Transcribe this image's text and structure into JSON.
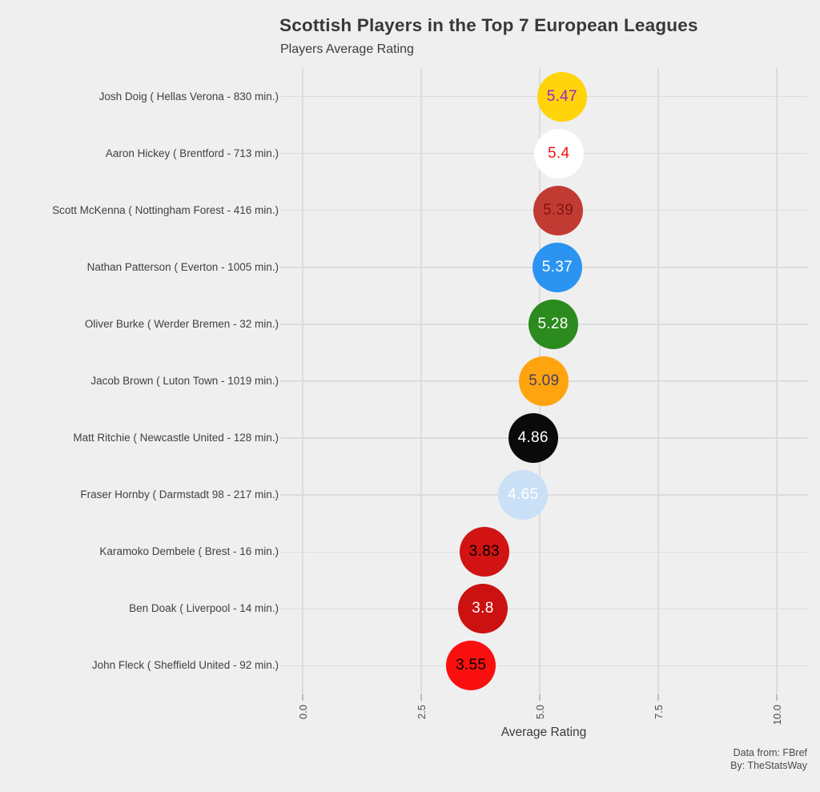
{
  "chart_data": {
    "type": "scatter",
    "title": "Scottish Players in the Top 7 European Leagues",
    "subtitle": "Players Average Rating",
    "xlabel": "Average Rating",
    "xlim": [
      0,
      10
    ],
    "x_ticks": [
      0,
      2.5,
      5,
      7.5,
      10
    ],
    "x_tick_labels": [
      "0.0",
      "2.5",
      "5.0",
      "7.5",
      "10.0"
    ],
    "grid": true,
    "legend": "none",
    "players": [
      {
        "label": "Josh Doig  ( Hellas Verona - 830 min.)",
        "name": "Josh Doig",
        "team": "Hellas Verona",
        "minutes": 830,
        "rating": 5.47,
        "value_label": "5.47",
        "dot_color": "#ffd40a",
        "text_color": "#a020cc"
      },
      {
        "label": "Aaron Hickey  ( Brentford - 713 min.)",
        "name": "Aaron Hickey",
        "team": "Brentford",
        "minutes": 713,
        "rating": 5.4,
        "value_label": "5.4",
        "dot_color": "#ffffff",
        "text_color": "#ee1212"
      },
      {
        "label": "Scott McKenna  ( Nottingham Forest - 416 min.)",
        "name": "Scott McKenna",
        "team": "Nottingham Forest",
        "minutes": 416,
        "rating": 5.39,
        "value_label": "5.39",
        "dot_color": "#c23b33",
        "text_color": "#7e1411"
      },
      {
        "label": "Nathan Patterson  ( Everton - 1005 min.)",
        "name": "Nathan Patterson",
        "team": "Everton",
        "minutes": 1005,
        "rating": 5.37,
        "value_label": "5.37",
        "dot_color": "#2b94f0",
        "text_color": "#ffffff"
      },
      {
        "label": "Oliver Burke  ( Werder Bremen - 32 min.)",
        "name": "Oliver Burke",
        "team": "Werder Bremen",
        "minutes": 32,
        "rating": 5.28,
        "value_label": "5.28",
        "dot_color": "#2b8b1e",
        "text_color": "#ffffff"
      },
      {
        "label": "Jacob Brown  ( Luton Town - 1019 min.)",
        "name": "Jacob Brown",
        "team": "Luton Town",
        "minutes": 1019,
        "rating": 5.09,
        "value_label": "5.09",
        "dot_color": "#ffa40e",
        "text_color": "#433e68"
      },
      {
        "label": "Matt Ritchie  ( Newcastle United - 128 min.)",
        "name": "Matt Ritchie",
        "team": "Newcastle United",
        "minutes": 128,
        "rating": 4.86,
        "value_label": "4.86",
        "dot_color": "#0a0a0a",
        "text_color": "#ffffff"
      },
      {
        "label": "Fraser Hornby  ( Darmstadt 98 - 217 min.)",
        "name": "Fraser Hornby",
        "team": "Darmstadt 98",
        "minutes": 217,
        "rating": 4.65,
        "value_label": "4.65",
        "dot_color": "#c9e0f7",
        "text_color": "#ffffff"
      },
      {
        "label": "Karamoko Dembele  ( Brest - 16 min.)",
        "name": "Karamoko Dembele",
        "team": "Brest",
        "minutes": 16,
        "rating": 3.83,
        "value_label": "3.83",
        "dot_color": "#d11313",
        "text_color": "#000000"
      },
      {
        "label": "Ben Doak  ( Liverpool - 14 min.)",
        "name": "Ben Doak",
        "team": "Liverpool",
        "minutes": 14,
        "rating": 3.8,
        "value_label": "3.8",
        "dot_color": "#cc1111",
        "text_color": "#ffffff"
      },
      {
        "label": "John Fleck  ( Sheffield United - 92 min.)",
        "name": "John Fleck",
        "team": "Sheffield United",
        "minutes": 92,
        "rating": 3.55,
        "value_label": "3.55",
        "dot_color": "#fa0f0f",
        "text_color": "#000000"
      }
    ]
  },
  "footer": {
    "line1": "Data from: FBref",
    "line2": "By: TheStatsWay"
  },
  "colors": {
    "background": "#efefef",
    "gridline": "#dcdcdc",
    "title": "#383838",
    "label": "#404040"
  }
}
